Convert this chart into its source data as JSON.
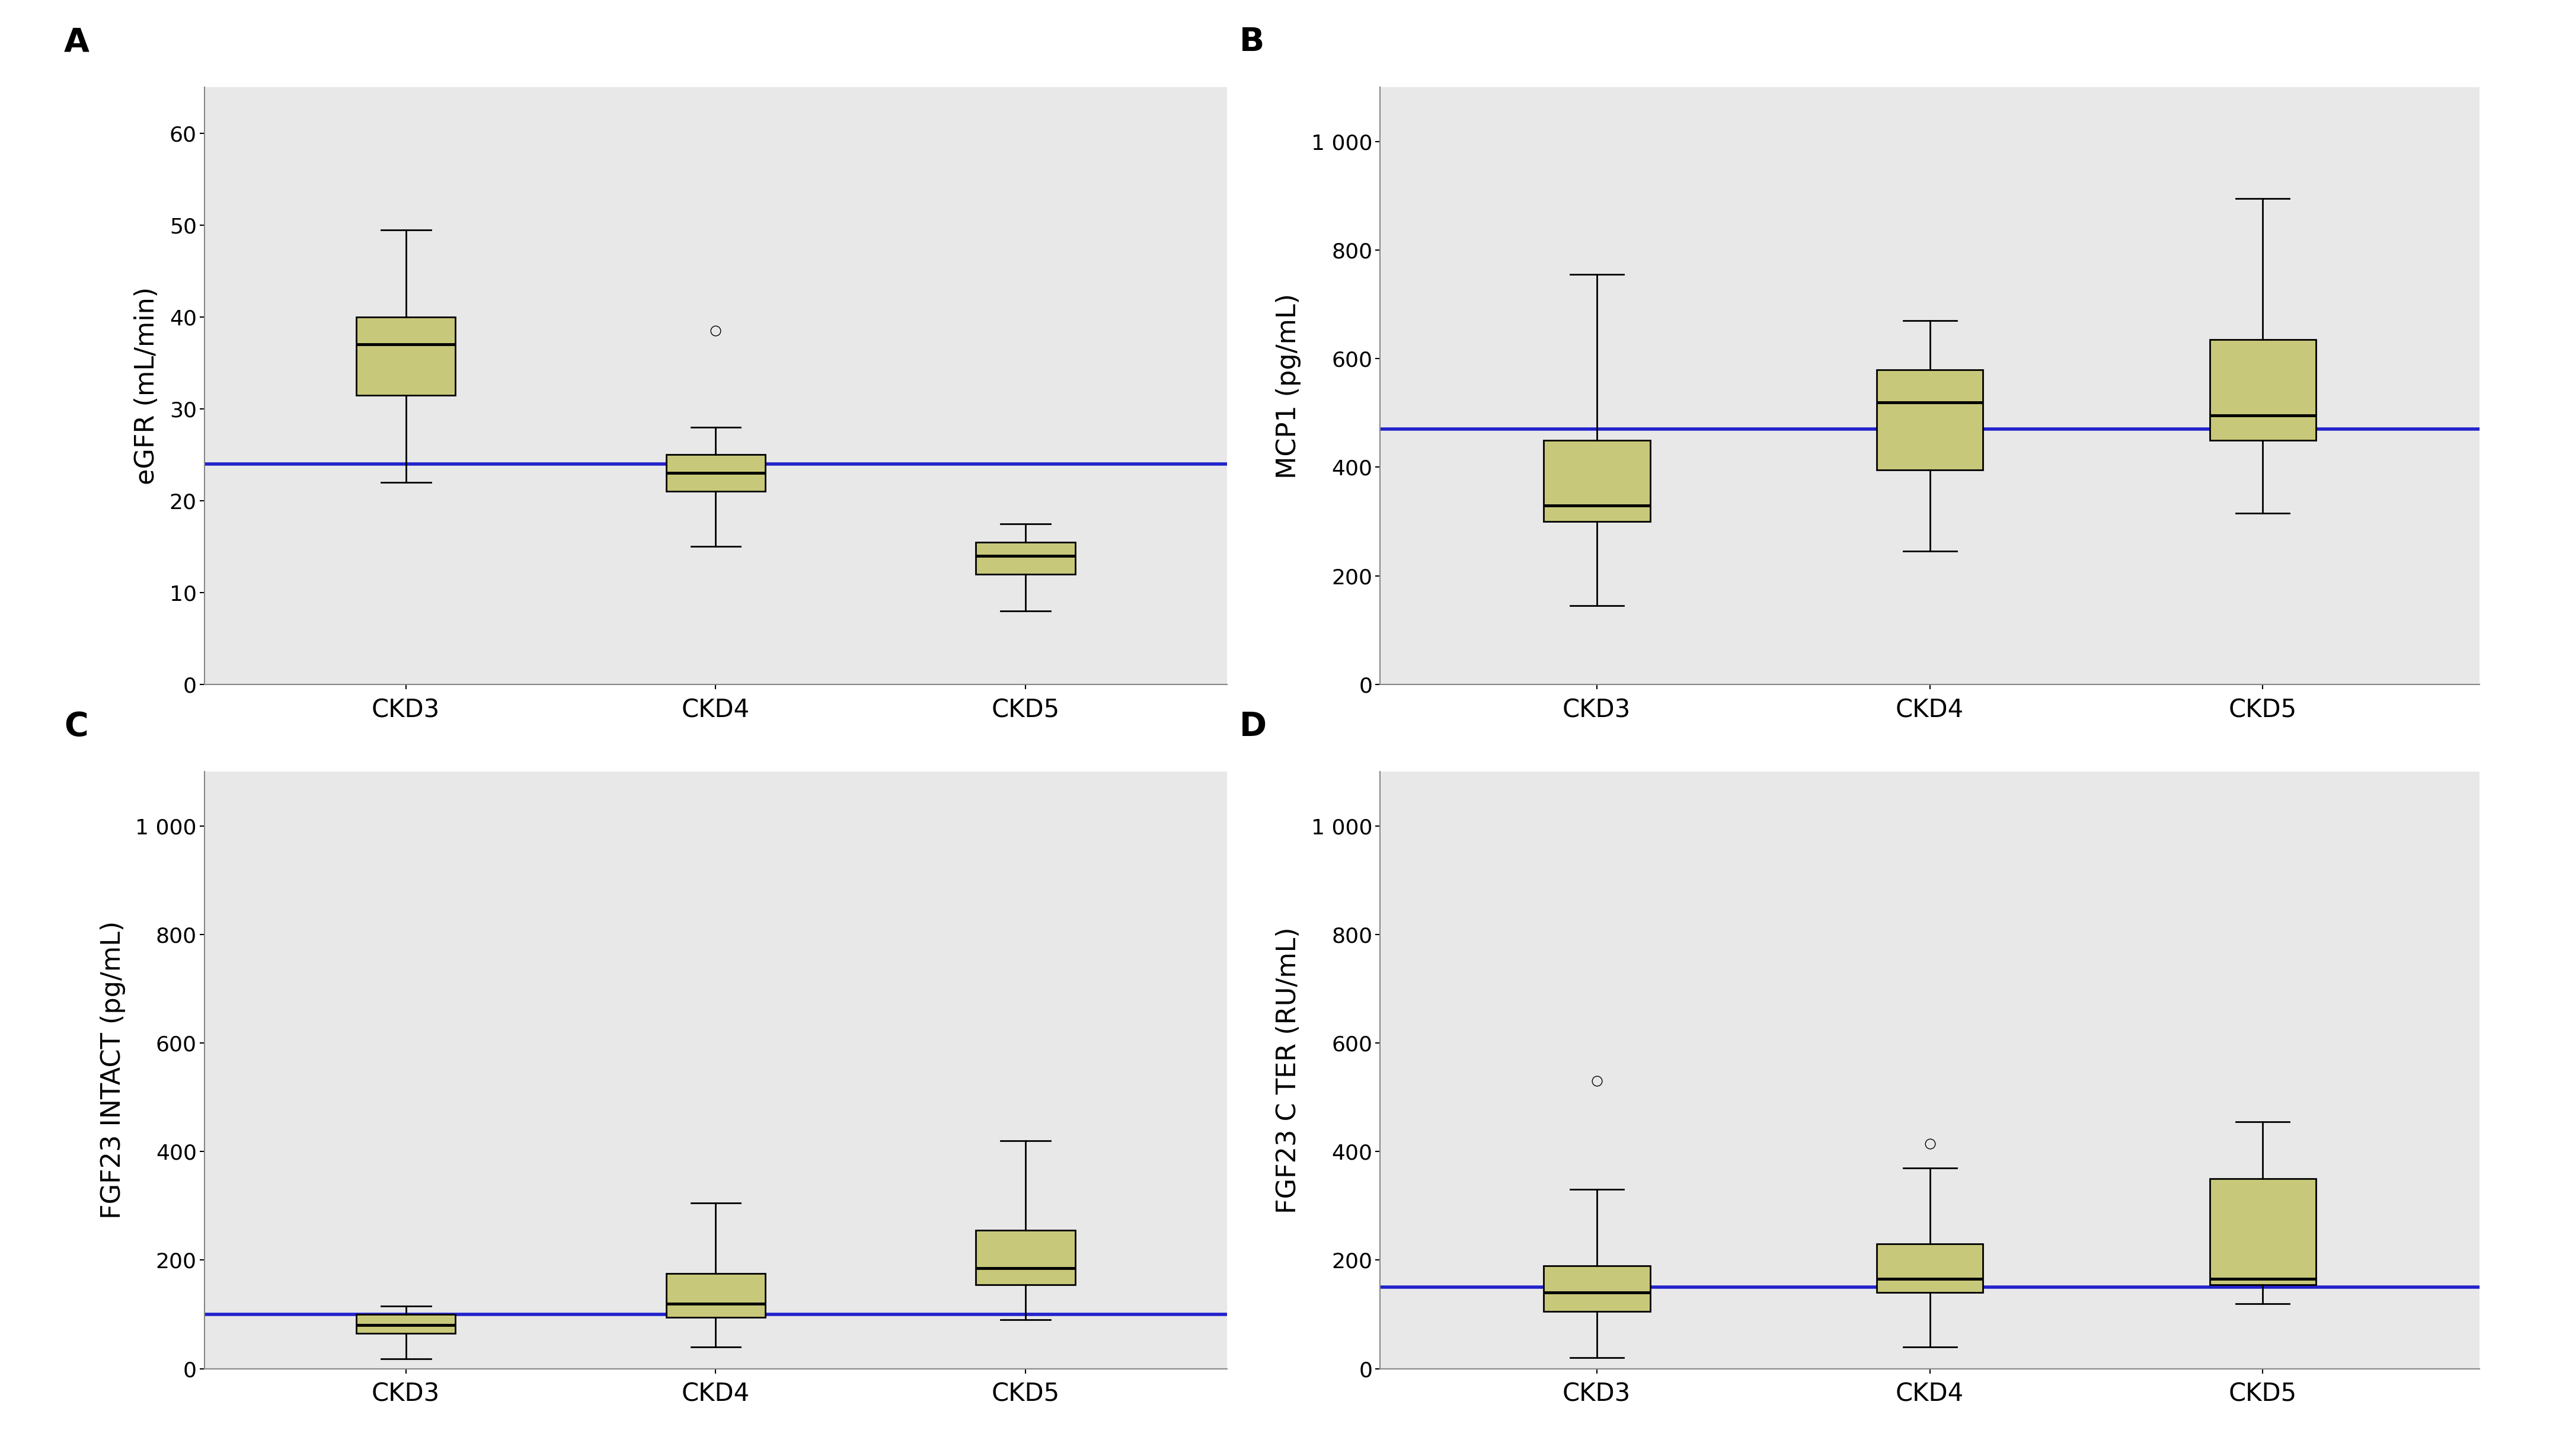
{
  "panels": [
    {
      "label": "A",
      "ylabel": "eGFR (mL/min)",
      "ylim": [
        0,
        65
      ],
      "yticks": [
        0,
        10,
        20,
        30,
        40,
        50,
        60
      ],
      "ytick_labels": [
        "0",
        "10",
        "20",
        "30",
        "40",
        "50",
        "60"
      ],
      "hline": 24,
      "hline_color": "#2222cc",
      "groups": [
        "CKD3",
        "CKD4",
        "CKD5"
      ],
      "boxes": [
        {
          "q1": 31.5,
          "median": 37,
          "q3": 40,
          "whislo": 22,
          "whishi": 49.5,
          "fliers": []
        },
        {
          "q1": 21,
          "median": 23,
          "q3": 25,
          "whislo": 15,
          "whishi": 28,
          "fliers": [
            38.5
          ]
        },
        {
          "q1": 12,
          "median": 14,
          "q3": 15.5,
          "whislo": 8,
          "whishi": 17.5,
          "fliers": []
        }
      ]
    },
    {
      "label": "B",
      "ylabel": "MCP1 (pg/mL)",
      "ylim": [
        0,
        1100
      ],
      "yticks": [
        0,
        200,
        400,
        600,
        800,
        1000
      ],
      "ytick_labels": [
        "0",
        "200",
        "400",
        "600",
        "800",
        "1 000"
      ],
      "hline": 470,
      "hline_color": "#2222cc",
      "groups": [
        "CKD3",
        "CKD4",
        "CKD5"
      ],
      "boxes": [
        {
          "q1": 300,
          "median": 330,
          "q3": 450,
          "whislo": 145,
          "whishi": 755,
          "fliers": []
        },
        {
          "q1": 395,
          "median": 520,
          "q3": 580,
          "whislo": 245,
          "whishi": 670,
          "fliers": []
        },
        {
          "q1": 450,
          "median": 495,
          "q3": 635,
          "whislo": 315,
          "whishi": 895,
          "fliers": []
        }
      ]
    },
    {
      "label": "C",
      "ylabel": "FGF23 INTACT (pg/mL)",
      "ylim": [
        0,
        1100
      ],
      "yticks": [
        0,
        200,
        400,
        600,
        800,
        1000
      ],
      "ytick_labels": [
        "0",
        "200",
        "400",
        "600",
        "800",
        "1 000"
      ],
      "hline": 100,
      "hline_color": "#2222cc",
      "groups": [
        "CKD3",
        "CKD4",
        "CKD5"
      ],
      "boxes": [
        {
          "q1": 65,
          "median": 80,
          "q3": 100,
          "whislo": 18,
          "whishi": 115,
          "fliers": []
        },
        {
          "q1": 95,
          "median": 120,
          "q3": 175,
          "whislo": 40,
          "whishi": 305,
          "fliers": []
        },
        {
          "q1": 155,
          "median": 185,
          "q3": 255,
          "whislo": 90,
          "whishi": 420,
          "fliers": []
        }
      ]
    },
    {
      "label": "D",
      "ylabel": "FGF23 C TER (RU/mL)",
      "ylim": [
        0,
        1100
      ],
      "yticks": [
        0,
        200,
        400,
        600,
        800,
        1000
      ],
      "ytick_labels": [
        "0",
        "200",
        "400",
        "600",
        "800",
        "1 000"
      ],
      "hline": 150,
      "hline_color": "#2222cc",
      "groups": [
        "CKD3",
        "CKD4",
        "CKD5"
      ],
      "boxes": [
        {
          "q1": 105,
          "median": 140,
          "q3": 190,
          "whislo": 20,
          "whishi": 330,
          "fliers": [
            530
          ]
        },
        {
          "q1": 140,
          "median": 165,
          "q3": 230,
          "whislo": 40,
          "whishi": 370,
          "fliers": [
            415
          ]
        },
        {
          "q1": 155,
          "median": 165,
          "q3": 350,
          "whislo": 120,
          "whishi": 455,
          "fliers": []
        }
      ]
    }
  ],
  "box_facecolor": "#c8c87a",
  "box_edgecolor": "#000000",
  "median_color": "#000000",
  "whisker_color": "#000000",
  "cap_color": "#000000",
  "flier_color": "#000000",
  "bg_color": "#e8e8e8",
  "fig_bg_color": "#ffffff",
  "label_fontsize": 32,
  "tick_fontsize": 26,
  "xlabel_fontsize": 30,
  "panel_label_fontsize": 40,
  "box_width": 0.32,
  "linewidth": 2.0,
  "median_linewidth": 3.5,
  "hline_linewidth": 4.0
}
